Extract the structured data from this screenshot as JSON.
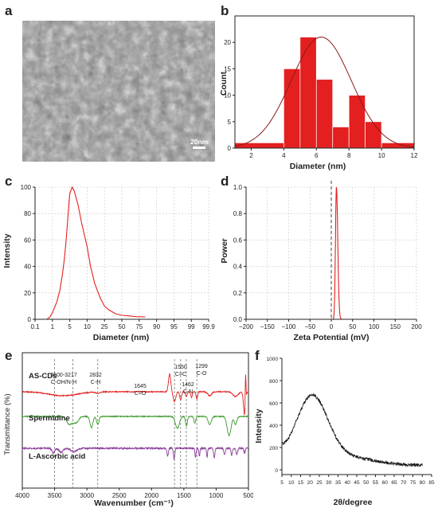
{
  "panels": {
    "a": {
      "label": "a",
      "scale_bar": "20nm"
    },
    "b": {
      "label": "b"
    },
    "c": {
      "label": "c"
    },
    "d": {
      "label": "d"
    },
    "e": {
      "label": "e"
    },
    "f": {
      "label": "f"
    }
  },
  "colors": {
    "red": "#e3201f",
    "green": "#3a9a2a",
    "purple": "#8a3c9a",
    "black": "#111111",
    "grid": "#c8c8c8"
  },
  "chart_data": [
    {
      "id": "b",
      "type": "bar",
      "xlabel": "Diameter (nm)",
      "ylabel": "Count",
      "xlim": [
        1,
        12
      ],
      "ylim": [
        0,
        25
      ],
      "xticks": [
        2,
        4,
        6,
        8,
        10,
        12
      ],
      "yticks": [
        0,
        5,
        10,
        15,
        20
      ],
      "bins": [
        {
          "x0": 1,
          "x1": 4,
          "count": 1
        },
        {
          "x0": 4,
          "x1": 5,
          "count": 15
        },
        {
          "x0": 5,
          "x1": 6,
          "count": 21
        },
        {
          "x0": 6,
          "x1": 7,
          "count": 13
        },
        {
          "x0": 7,
          "x1": 8,
          "count": 4
        },
        {
          "x0": 8,
          "x1": 9,
          "count": 10
        },
        {
          "x0": 9,
          "x1": 10,
          "count": 5
        },
        {
          "x0": 10,
          "x1": 12,
          "count": 1
        }
      ],
      "fit": {
        "type": "gaussian",
        "mean": 6.3,
        "sigma": 1.85,
        "peak": 21
      }
    },
    {
      "id": "c",
      "type": "line",
      "xlabel": "Diameter (nm)",
      "ylabel": "Intensity",
      "x_tick_labels": [
        "0.1",
        "1",
        "5",
        "10",
        "25",
        "50",
        "75",
        "90",
        "95",
        "99",
        "99.9"
      ],
      "yticks": [
        0,
        20,
        40,
        60,
        80,
        100
      ],
      "ylim": [
        0,
        100
      ],
      "peak_x": 5,
      "x_range": [
        0.5,
        80
      ],
      "points": [
        [
          0.5,
          0.2
        ],
        [
          0.7,
          1.5
        ],
        [
          1,
          5
        ],
        [
          1.5,
          13
        ],
        [
          2,
          22
        ],
        [
          2.5,
          33
        ],
        [
          3,
          45
        ],
        [
          3.5,
          58
        ],
        [
          4,
          72
        ],
        [
          4.5,
          85
        ],
        [
          5,
          95
        ],
        [
          5.5,
          100
        ],
        [
          6,
          97
        ],
        [
          7,
          86
        ],
        [
          8,
          73
        ],
        [
          10,
          55
        ],
        [
          12,
          40
        ],
        [
          15,
          27
        ],
        [
          20,
          16
        ],
        [
          25,
          10
        ],
        [
          30,
          7
        ],
        [
          40,
          4
        ],
        [
          50,
          3
        ],
        [
          60,
          2.5
        ],
        [
          70,
          2
        ],
        [
          80,
          1.8
        ]
      ]
    },
    {
      "id": "d",
      "type": "line",
      "xlabel": "Zeta Potential (mV)",
      "ylabel": "Power",
      "xlim": [
        -200,
        200
      ],
      "ylim": [
        0,
        1.0
      ],
      "xticks": [
        -200,
        -150,
        -100,
        -50,
        0,
        50,
        100,
        150,
        200
      ],
      "yticks": [
        0.0,
        0.2,
        0.4,
        0.6,
        0.8,
        1.0
      ],
      "x_tick_labels": [
        "−200",
        "−150",
        "−100",
        "−50",
        "0",
        "50",
        "100",
        "150",
        "200"
      ],
      "y_tick_labels": [
        "0.0",
        "0.2",
        "0.4",
        "0.6",
        "0.8",
        "1.0"
      ],
      "reference_line_x": 0,
      "peak": {
        "x": 12,
        "y": 1.0
      }
    },
    {
      "id": "e",
      "type": "line",
      "xlabel": "Wavenumber (cm⁻¹)",
      "ylabel": "Transmittance (%)",
      "xlim": [
        4000,
        500
      ],
      "x_reversed": true,
      "xticks": [
        4000,
        3500,
        3000,
        2500,
        2000,
        1500,
        1000,
        500
      ],
      "series": [
        {
          "name": "AS-CDs"
        },
        {
          "name": "Spermidine"
        },
        {
          "name": "L-Ascorbic acid"
        }
      ],
      "annotations": [
        {
          "text": [
            "3500-3217",
            "C-OH/N-H"
          ],
          "x": 3370
        },
        {
          "text": [
            "2832",
            "C-H"
          ],
          "x": 2832
        },
        {
          "text": [
            "1645",
            "C=O"
          ],
          "x": 1645
        },
        {
          "text": [
            "1550",
            "C=C"
          ],
          "x": 1550
        },
        {
          "text": [
            "1462",
            "C-N"
          ],
          "x": 1462
        },
        {
          "text": [
            "1299",
            "C-O"
          ],
          "x": 1299
        }
      ],
      "dashed_lines_x": [
        3500,
        3217,
        2832,
        1645,
        1550,
        1462,
        1299
      ]
    },
    {
      "id": "f",
      "type": "line",
      "xlabel": "2θ/degree",
      "ylabel": "Intensity",
      "xlim": [
        5,
        85
      ],
      "ylim": [
        0,
        1000
      ],
      "xticks": [
        5,
        10,
        15,
        20,
        25,
        30,
        35,
        40,
        45,
        50,
        55,
        60,
        65,
        70,
        75,
        80,
        85
      ],
      "yticks": [
        0,
        200,
        400,
        600,
        800,
        1000
      ],
      "x_range": [
        5,
        80
      ],
      "profile": {
        "baseline": 40,
        "peak_center": 21,
        "peak_height": 600,
        "peak_width": 8.5
      }
    }
  ]
}
